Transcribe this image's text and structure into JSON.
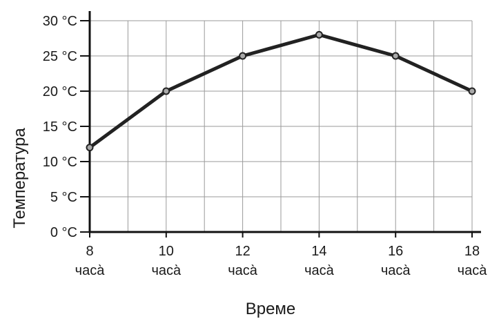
{
  "chart_data": {
    "type": "line",
    "xlabel": "Време",
    "ylabel": "Температура",
    "x_ticks": [
      {
        "value": 8,
        "label_top": "8",
        "label_bottom": "часа̀"
      },
      {
        "value": 10,
        "label_top": "10",
        "label_bottom": "часа̀"
      },
      {
        "value": 12,
        "label_top": "12",
        "label_bottom": "часа̀"
      },
      {
        "value": 14,
        "label_top": "14",
        "label_bottom": "часа̀"
      },
      {
        "value": 16,
        "label_top": "16",
        "label_bottom": "часа̀"
      },
      {
        "value": 18,
        "label_top": "18",
        "label_bottom": "часа̀"
      }
    ],
    "y_ticks": [
      {
        "value": 0,
        "label": "0 °C"
      },
      {
        "value": 5,
        "label": "5 °C"
      },
      {
        "value": 10,
        "label": "10 °C"
      },
      {
        "value": 15,
        "label": "15 °C"
      },
      {
        "value": 20,
        "label": "20 °C"
      },
      {
        "value": 25,
        "label": "25 °C"
      },
      {
        "value": 30,
        "label": "30 °C"
      }
    ],
    "xlim": [
      8,
      18
    ],
    "ylim": [
      0,
      30
    ],
    "grid": true,
    "x": [
      8,
      10,
      12,
      14,
      16,
      18
    ],
    "series": [
      {
        "values": [
          12,
          20,
          25,
          28,
          25,
          20
        ]
      }
    ],
    "colors": {
      "line": "#222222",
      "marker_fill": "#a9a9a9",
      "grid": "#9a9a9a",
      "axis": "#111111"
    }
  }
}
